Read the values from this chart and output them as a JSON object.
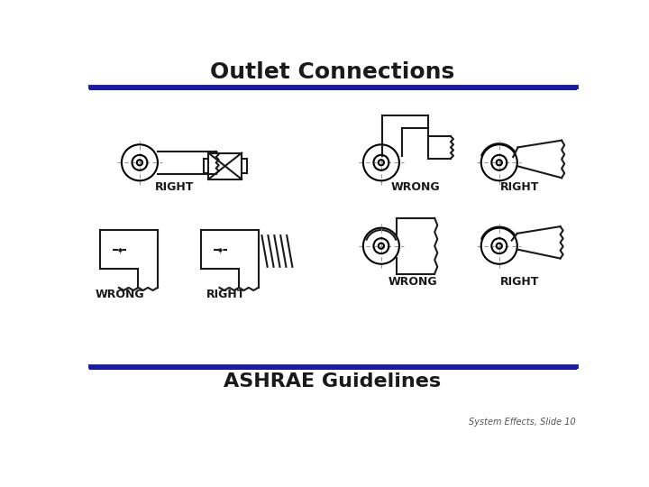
{
  "title": "Outlet Connections",
  "subtitle": "ASHRAE Guidelines",
  "footer": "System Effects, Slide 10",
  "title_color": "#000000",
  "line_color_dark": "#1a1aaa",
  "line_color_light": "#4444cc",
  "bg_color": "#FFFFFF",
  "draw_color": "#1a1a1a",
  "labels_row1": [
    "RIGHT",
    "",
    "WRONG",
    "RIGHT"
  ],
  "labels_row2": [
    "WRONG",
    "RIGHT",
    "WRONG",
    "RIGHT"
  ],
  "title_fontsize": 18,
  "label_fontsize": 9,
  "subtitle_fontsize": 16,
  "footer_fontsize": 7
}
